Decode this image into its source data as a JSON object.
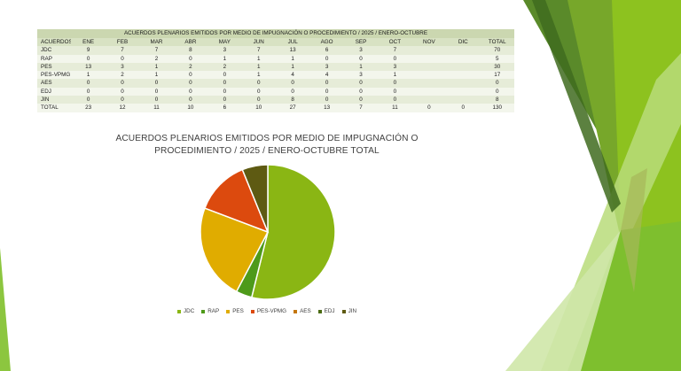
{
  "table": {
    "caption": "ACUERDOS PLENARIOS EMITIDOS POR MEDIO DE IMPUGNACIÓN O PROCEDIMIENTO / 2025 /  ENERO-OCTUBRE",
    "headers": [
      "ACUERDOS",
      "ENE",
      "FEB",
      "MAR",
      "ABR",
      "MAY",
      "JUN",
      "JUL",
      "AGO",
      "SEP",
      "OCT",
      "NOV",
      "DIC",
      "TOTAL"
    ],
    "rows": [
      [
        "JDC",
        "9",
        "7",
        "7",
        "8",
        "3",
        "7",
        "13",
        "6",
        "3",
        "7",
        "",
        "",
        "70"
      ],
      [
        "RAP",
        "0",
        "0",
        "2",
        "0",
        "1",
        "1",
        "1",
        "0",
        "0",
        "0",
        "",
        "",
        "5"
      ],
      [
        "PES",
        "13",
        "3",
        "1",
        "2",
        "2",
        "1",
        "1",
        "3",
        "1",
        "3",
        "",
        "",
        "30"
      ],
      [
        "PES-VPMG",
        "1",
        "2",
        "1",
        "0",
        "0",
        "1",
        "4",
        "4",
        "3",
        "1",
        "",
        "",
        "17"
      ],
      [
        "AES",
        "0",
        "0",
        "0",
        "0",
        "0",
        "0",
        "0",
        "0",
        "0",
        "0",
        "",
        "",
        "0"
      ],
      [
        "EDJ",
        "0",
        "0",
        "0",
        "0",
        "0",
        "0",
        "0",
        "0",
        "0",
        "0",
        "",
        "",
        "0"
      ],
      [
        "JIN",
        "0",
        "0",
        "0",
        "0",
        "0",
        "0",
        "8",
        "0",
        "0",
        "0",
        "",
        "",
        "8"
      ],
      [
        "TOTAL",
        "23",
        "12",
        "11",
        "10",
        "6",
        "10",
        "27",
        "13",
        "7",
        "11",
        "0",
        "0",
        "130"
      ]
    ]
  },
  "chart_data": {
    "type": "pie",
    "title": "ACUERDOS PLENARIOS EMITIDOS POR MEDIO DE IMPUGNACIÓN O PROCEDIMIENTO / 2025 /   ENERO-OCTUBRE TOTAL",
    "categories": [
      "JDC",
      "RAP",
      "PES",
      "PES-VPMG",
      "AES",
      "EDJ",
      "JIN"
    ],
    "values": [
      70,
      5,
      30,
      17,
      0,
      0,
      8
    ],
    "colors": [
      "#8ab614",
      "#4e9a1a",
      "#e0ac00",
      "#dc4a0e",
      "#c4760c",
      "#4a6b12",
      "#5e5a12"
    ],
    "legend_position": "bottom"
  }
}
